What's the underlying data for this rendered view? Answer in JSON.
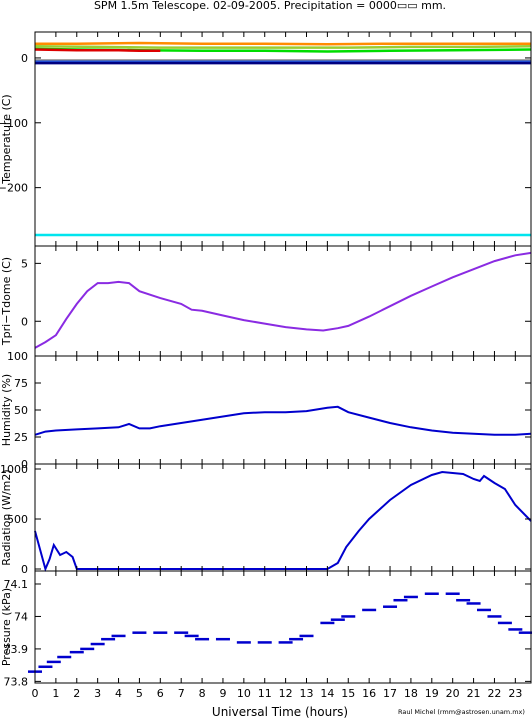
{
  "title": "SPM 1.5m Telescope. 02-09-2005. Precipitation = 0000▭▭ mm.",
  "xlabel": "Universal Time (hours)",
  "credit": "Raul Michel (rmm@astrosen.unam.mx)",
  "x_ticks": [
    "0",
    "1",
    "2",
    "3",
    "4",
    "5",
    "6",
    "7",
    "8",
    "9",
    "10",
    "11",
    "12",
    "13",
    "14",
    "15",
    "16",
    "17",
    "18",
    "19",
    "20",
    "21",
    "22",
    "23"
  ],
  "colors": {
    "temp_orange": "#ff8c00",
    "temp_olive": "#9acd32",
    "temp_green": "#00dd00",
    "temp_red": "#dd0000",
    "temp_navy": "#000080",
    "temp_blue": "#2255dd",
    "temp_gray": "#888888",
    "temp_cyan": "#00e5ee",
    "purple": "#8a2be2",
    "blue": "#0000cd"
  },
  "chart_data": [
    {
      "type": "line",
      "ylabel": "Temperature (C)",
      "xlim": [
        0,
        23.75
      ],
      "ylim": [
        -290,
        40
      ],
      "y_ticks": [
        "0",
        "−100",
        "−200"
      ],
      "series": [
        {
          "color_key": "temp_orange",
          "x": [
            0,
            2,
            5,
            8,
            11,
            14,
            17,
            20,
            23.75
          ],
          "y": [
            22,
            22,
            23,
            22,
            22,
            21,
            22,
            22,
            22
          ]
        },
        {
          "color_key": "temp_olive",
          "x": [
            0,
            3,
            6,
            9,
            12,
            15,
            18,
            21,
            23.75
          ],
          "y": [
            18,
            17,
            16,
            16,
            16,
            16,
            17,
            17,
            18
          ]
        },
        {
          "color_key": "temp_green",
          "x": [
            0,
            2,
            5,
            8,
            11,
            14,
            17,
            20,
            23.75
          ],
          "y": [
            14,
            13,
            12,
            11,
            11,
            10,
            11,
            12,
            13
          ]
        },
        {
          "color_key": "temp_red",
          "x": [
            0,
            2,
            3,
            4,
            5,
            6
          ],
          "y": [
            13,
            12,
            12,
            12,
            11,
            11
          ]
        },
        {
          "color_key": "temp_gray",
          "x": [
            0,
            23.75
          ],
          "y": [
            -4,
            -4
          ]
        },
        {
          "color_key": "temp_blue",
          "x": [
            0,
            23.75
          ],
          "y": [
            -6,
            -6
          ]
        },
        {
          "color_key": "temp_navy",
          "x": [
            0,
            23.75
          ],
          "y": [
            -8,
            -8
          ]
        },
        {
          "color_key": "temp_cyan",
          "x": [
            0,
            23.75
          ],
          "y": [
            -273,
            -273
          ]
        }
      ]
    },
    {
      "type": "line",
      "ylabel": "Tpri−Tdome (C)",
      "xlim": [
        0,
        23.75
      ],
      "ylim": [
        -3,
        6.5
      ],
      "y_ticks": [
        "0",
        "5"
      ],
      "series": [
        {
          "color_key": "purple",
          "x": [
            0,
            0.5,
            1,
            1.5,
            2,
            2.5,
            3,
            3.5,
            4,
            4.5,
            5,
            6,
            7,
            7.5,
            8,
            9,
            10,
            11,
            12,
            13,
            13.8,
            14.5,
            15,
            16,
            17,
            18,
            19,
            20,
            21,
            22,
            23,
            23.75
          ],
          "y": [
            -2.3,
            -1.8,
            -1.2,
            0.2,
            1.5,
            2.6,
            3.3,
            3.3,
            3.4,
            3.3,
            2.6,
            2.0,
            1.5,
            1.0,
            0.9,
            0.5,
            0.1,
            -0.2,
            -0.5,
            -0.7,
            -0.8,
            -0.6,
            -0.4,
            0.4,
            1.3,
            2.2,
            3.0,
            3.8,
            4.5,
            5.2,
            5.7,
            5.9
          ]
        }
      ]
    },
    {
      "type": "line",
      "ylabel": "Humidity (%)",
      "xlim": [
        0,
        23.75
      ],
      "ylim": [
        0,
        100
      ],
      "y_ticks": [
        "0",
        "25",
        "50",
        "75",
        "100"
      ],
      "series": [
        {
          "color_key": "blue",
          "x": [
            0,
            0.5,
            1,
            2,
            3,
            4,
            4.5,
            5,
            5.5,
            6,
            8,
            10,
            11,
            12,
            13,
            14,
            14.5,
            15,
            16,
            17,
            18,
            19,
            20,
            21,
            22,
            23,
            23.75
          ],
          "y": [
            27,
            30,
            31,
            32,
            33,
            34,
            37,
            33,
            33,
            35,
            41,
            47,
            48,
            48,
            49,
            52,
            53,
            48,
            43,
            38,
            34,
            31,
            29,
            28,
            27,
            27,
            28
          ]
        }
      ]
    },
    {
      "type": "line",
      "ylabel": "Radiation (W/m2)",
      "xlim": [
        0,
        23.75
      ],
      "ylim": [
        -20,
        1050
      ],
      "y_ticks": [
        "0",
        "500",
        "1000"
      ],
      "series": [
        {
          "color_key": "blue",
          "x": [
            0,
            0.5,
            0.7,
            0.9,
            1.2,
            1.5,
            1.8,
            2,
            3,
            5,
            8,
            10,
            12,
            14,
            14.5,
            14.9,
            15.5,
            16,
            17,
            18,
            19,
            19.5,
            20,
            20.5,
            21,
            21.3,
            21.5,
            22,
            22.5,
            23,
            23.75
          ],
          "y": [
            380,
            0,
            100,
            240,
            140,
            170,
            120,
            0,
            0,
            0,
            0,
            0,
            0,
            0,
            60,
            220,
            380,
            500,
            690,
            840,
            940,
            970,
            960,
            950,
            900,
            880,
            930,
            860,
            800,
            640,
            480
          ]
        }
      ]
    },
    {
      "type": "scatter",
      "ylabel": "Pressure (kPa)",
      "xlim": [
        0,
        23.75
      ],
      "ylim": [
        73.795,
        74.14
      ],
      "y_ticks": [
        "73.8",
        "73.9",
        "74",
        "74.1"
      ],
      "series": [
        {
          "color_key": "blue",
          "x": [
            0,
            0.5,
            0.9,
            1.4,
            2,
            2.5,
            3,
            3.5,
            4,
            5,
            6,
            7,
            7.5,
            8,
            9,
            10,
            11,
            12,
            12.5,
            13,
            14,
            14.5,
            15,
            16,
            17,
            17.5,
            18,
            19,
            20,
            20.5,
            21,
            21.5,
            22,
            22.5,
            23,
            23.5
          ],
          "y": [
            73.83,
            73.845,
            73.86,
            73.875,
            73.89,
            73.9,
            73.915,
            73.93,
            73.94,
            73.95,
            73.95,
            73.95,
            73.94,
            73.93,
            73.93,
            73.92,
            73.92,
            73.92,
            73.93,
            73.94,
            73.98,
            73.99,
            74.0,
            74.02,
            74.03,
            74.05,
            74.06,
            74.07,
            74.07,
            74.05,
            74.04,
            74.02,
            74.0,
            73.98,
            73.96,
            73.95
          ]
        }
      ]
    }
  ]
}
